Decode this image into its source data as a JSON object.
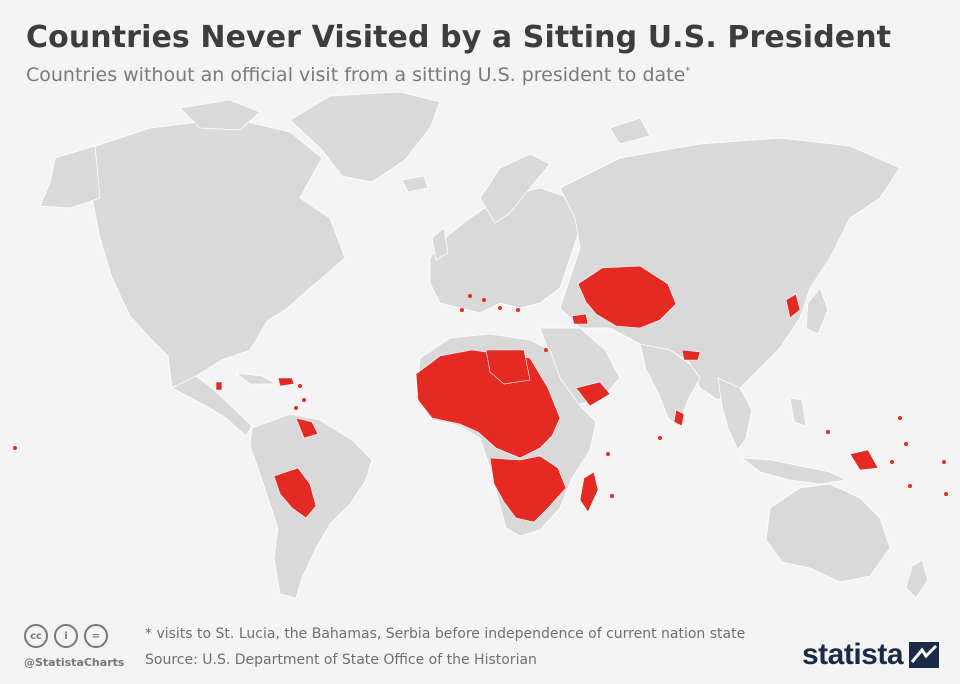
{
  "title": "Countries Never Visited by a Sitting U.S. President",
  "subtitle": "Countries without an official visit from a sitting U.S. president to date",
  "subtitle_marker": "*",
  "footnote": "* visits to St. Lucia, the Bahamas, Serbia before independence of current nation state",
  "source": "Source: U.S. Department of State Office of the Historian",
  "handle": "@StatistaCharts",
  "brand": "statista",
  "license_icons": [
    "cc-icon",
    "attribution-icon",
    "no-derivatives-icon"
  ],
  "license_glyphs": [
    "cc",
    "i",
    "="
  ],
  "colors": {
    "highlight": "#e52a23",
    "land": "#d9d9d9",
    "background": "#f4f4f4",
    "title": "#3d3d3d",
    "brand": "#1a2b48"
  }
}
